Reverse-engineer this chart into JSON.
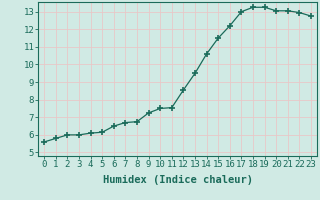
{
  "x": [
    0,
    1,
    2,
    3,
    4,
    5,
    6,
    7,
    8,
    9,
    10,
    11,
    12,
    13,
    14,
    15,
    16,
    17,
    18,
    19,
    20,
    21,
    22,
    23
  ],
  "y": [
    5.6,
    5.8,
    6.0,
    6.0,
    6.1,
    6.15,
    6.5,
    6.7,
    6.75,
    7.25,
    7.5,
    7.55,
    8.55,
    9.5,
    10.6,
    11.5,
    12.2,
    13.0,
    13.25,
    13.25,
    13.05,
    13.05,
    12.95,
    12.75
  ],
  "line_color": "#1a6b5a",
  "marker": "+",
  "marker_size": 4,
  "marker_lw": 1.2,
  "xlabel": "Humidex (Indice chaleur)",
  "xlim": [
    -0.5,
    23.5
  ],
  "ylim": [
    4.8,
    13.55
  ],
  "yticks": [
    5,
    6,
    7,
    8,
    9,
    10,
    11,
    12,
    13
  ],
  "xticks": [
    0,
    1,
    2,
    3,
    4,
    5,
    6,
    7,
    8,
    9,
    10,
    11,
    12,
    13,
    14,
    15,
    16,
    17,
    18,
    19,
    20,
    21,
    22,
    23
  ],
  "bg_color": "#d0eae4",
  "grid_color": "#e8c8c8",
  "tick_color": "#1a6b5a",
  "label_color": "#1a6b5a",
  "xlabel_fontsize": 7.5,
  "tick_fontsize": 6.5,
  "line_width": 0.9
}
